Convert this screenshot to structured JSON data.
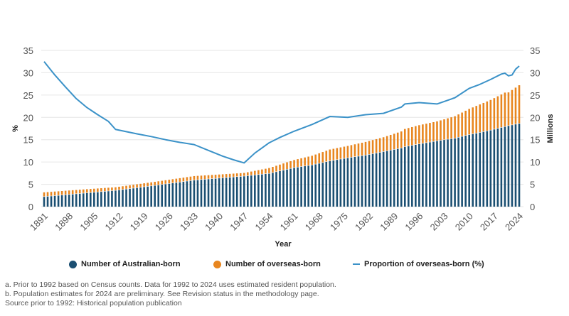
{
  "chart_data": {
    "type": "bar",
    "subtype": "stacked bar with line on secondary axis",
    "title": "",
    "xlabel": "Year",
    "ylabel_left": "%",
    "ylabel_right": "Millions",
    "ylim_left": [
      0,
      35
    ],
    "ylim_right": [
      0,
      35
    ],
    "yticks_left": [
      "0",
      "5",
      "10",
      "15",
      "20",
      "25",
      "30",
      "35"
    ],
    "yticks_right": [
      "0",
      "5",
      "10",
      "15",
      "20",
      "25",
      "30",
      "35"
    ],
    "xticks": [
      "1891",
      "1898",
      "1905",
      "1912",
      "1919",
      "1926",
      "1933",
      "1940",
      "1947",
      "1954",
      "1961",
      "1968",
      "1975",
      "1982",
      "1989",
      "1996",
      "2003",
      "2010",
      "2017",
      "2024"
    ],
    "x_start": 1891,
    "x_end": 2024,
    "grid": true,
    "legend_position": "bottom",
    "legend": [
      {
        "label": "Number of Australian-born",
        "color": "#1b4f72",
        "marker": "dot"
      },
      {
        "label": "Number of overseas-born",
        "color": "#e8861f",
        "marker": "dot"
      },
      {
        "label": "Proportion of overseas-born (%)",
        "color": "#3b92c8",
        "marker": "line"
      }
    ],
    "series_anchors": {
      "australian_born_millions": [
        [
          1891,
          2.2
        ],
        [
          1901,
          2.9
        ],
        [
          1911,
          3.6
        ],
        [
          1921,
          4.6
        ],
        [
          1933,
          5.9
        ],
        [
          1947,
          6.8
        ],
        [
          1954,
          7.4
        ],
        [
          1961,
          8.7
        ],
        [
          1966,
          9.3
        ],
        [
          1971,
          10.2
        ],
        [
          1976,
          10.9
        ],
        [
          1981,
          11.5
        ],
        [
          1986,
          12.3
        ],
        [
          1991,
          13.1
        ],
        [
          1992,
          13.4
        ],
        [
          1996,
          14.0
        ],
        [
          2001,
          14.7
        ],
        [
          2006,
          15.3
        ],
        [
          2010,
          16.1
        ],
        [
          2016,
          17.1
        ],
        [
          2020,
          17.9
        ],
        [
          2021,
          18.1
        ],
        [
          2024,
          18.6
        ]
      ],
      "overseas_born_millions": [
        [
          1891,
          1.0
        ],
        [
          1901,
          0.9
        ],
        [
          1911,
          0.75
        ],
        [
          1921,
          0.85
        ],
        [
          1933,
          0.95
        ],
        [
          1947,
          0.75
        ],
        [
          1954,
          1.25
        ],
        [
          1961,
          1.75
        ],
        [
          1966,
          2.1
        ],
        [
          1971,
          2.6
        ],
        [
          1976,
          2.7
        ],
        [
          1981,
          3.0
        ],
        [
          1986,
          3.25
        ],
        [
          1991,
          3.75
        ],
        [
          1992,
          4.0
        ],
        [
          1996,
          4.25
        ],
        [
          2001,
          4.4
        ],
        [
          2006,
          4.95
        ],
        [
          2010,
          5.8
        ],
        [
          2016,
          6.8
        ],
        [
          2020,
          7.65
        ],
        [
          2021,
          7.5
        ],
        [
          2024,
          8.6
        ]
      ],
      "overseas_born_percent": [
        [
          1891,
          32.5
        ],
        [
          1894,
          29.5
        ],
        [
          1897,
          26.8
        ],
        [
          1900,
          24.2
        ],
        [
          1903,
          22.2
        ],
        [
          1906,
          20.6
        ],
        [
          1909,
          19.1
        ],
        [
          1911,
          17.3
        ],
        [
          1914,
          16.8
        ],
        [
          1917,
          16.3
        ],
        [
          1921,
          15.7
        ],
        [
          1925,
          15.0
        ],
        [
          1929,
          14.4
        ],
        [
          1933,
          13.9
        ],
        [
          1937,
          12.6
        ],
        [
          1941,
          11.3
        ],
        [
          1944,
          10.5
        ],
        [
          1947,
          9.8
        ],
        [
          1950,
          12.0
        ],
        [
          1954,
          14.3
        ],
        [
          1957,
          15.5
        ],
        [
          1961,
          16.9
        ],
        [
          1966,
          18.4
        ],
        [
          1971,
          20.2
        ],
        [
          1976,
          20.0
        ],
        [
          1981,
          20.6
        ],
        [
          1986,
          20.9
        ],
        [
          1991,
          22.3
        ],
        [
          1992,
          23.0
        ],
        [
          1996,
          23.3
        ],
        [
          2001,
          23.0
        ],
        [
          2006,
          24.4
        ],
        [
          2010,
          26.5
        ],
        [
          2013,
          27.4
        ],
        [
          2016,
          28.5
        ],
        [
          2019,
          29.7
        ],
        [
          2020,
          29.9
        ],
        [
          2021,
          29.3
        ],
        [
          2022,
          29.5
        ],
        [
          2023,
          30.8
        ],
        [
          2024,
          31.5
        ]
      ]
    }
  },
  "legend": {
    "australian_born": "Number of Australian-born",
    "overseas_born": "Number of overseas-born",
    "proportion": "Proportion of overseas-born (%)",
    "colors": {
      "australian_born": "#1b4f72",
      "overseas_born": "#e8861f",
      "proportion": "#3b92c8"
    }
  },
  "notes": {
    "a": "a. Prior to 1992 based on Census counts. Data for 1992 to 2024 uses estimated resident population.",
    "b": "b. Population estimates for 2024 are preliminary. See Revision status in the methodology page.",
    "source": "Source prior to 1992: Historical population publication"
  }
}
